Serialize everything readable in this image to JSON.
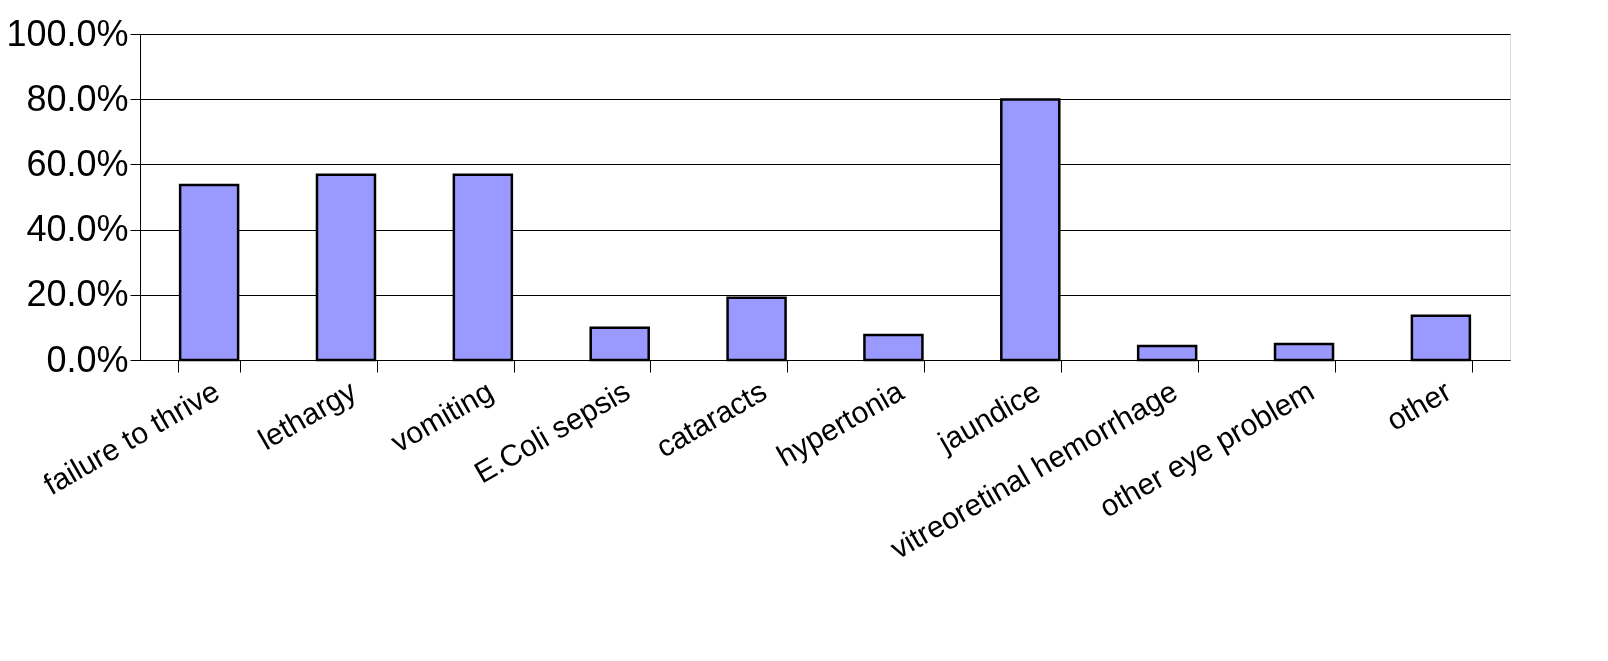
{
  "chart_data": {
    "type": "bar",
    "categories": [
      "failure to thrive",
      "lethargy",
      "vomiting",
      "E.Coli sepsis",
      "cataracts",
      "hypertonia",
      "jaundice",
      "vitreoretinal hemorrhage",
      "other eye problem",
      "other"
    ],
    "values": [
      53.7,
      56.8,
      56.8,
      9.9,
      19.1,
      7.7,
      79.9,
      4.3,
      4.9,
      13.6
    ],
    "color": "#9999ff",
    "ylim": [
      0,
      100
    ],
    "yticks": [
      {
        "value": 0,
        "label": "0.0%"
      },
      {
        "value": 20,
        "label": "20.0%"
      },
      {
        "value": 40,
        "label": "40.0%"
      },
      {
        "value": 60,
        "label": "60.0%"
      },
      {
        "value": 80,
        "label": "80.0%"
      },
      {
        "value": 100,
        "label": "100.0%"
      }
    ],
    "grid": "y"
  }
}
